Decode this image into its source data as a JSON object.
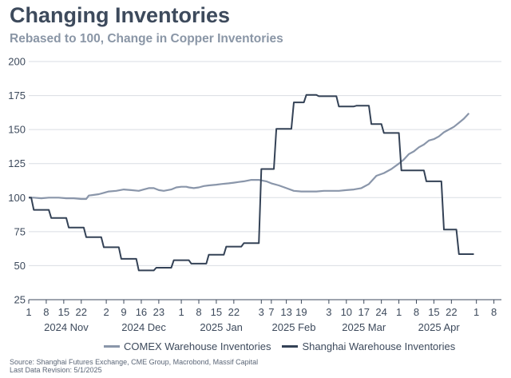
{
  "title": "Changing Inventories",
  "subtitle": "Rebased to 100, Change in Copper Inventories",
  "source": "Source: Shanghai Futures Exchange, CME Group, Macrobond, Massif Capital",
  "revision": "Last Data Revision: 5/1/2025",
  "colors": {
    "comex": "#8a96aa",
    "shanghai": "#344256",
    "grid": "#d9dde3",
    "text": "#3d4a5c"
  },
  "chart_data": {
    "type": "line",
    "title": "Changing Inventories",
    "subtitle": "Rebased to 100, Change in Copper Inventories",
    "ylim": [
      25,
      200
    ],
    "yticks": [
      25,
      50,
      75,
      100,
      125,
      150,
      175,
      200
    ],
    "xlim": [
      0,
      189
    ],
    "xticks": [
      {
        "d": 0,
        "label": "1"
      },
      {
        "d": 7,
        "label": "8"
      },
      {
        "d": 14,
        "label": "15"
      },
      {
        "d": 21,
        "label": "22"
      },
      {
        "d": 31,
        "label": "2"
      },
      {
        "d": 38,
        "label": "9"
      },
      {
        "d": 45,
        "label": "16"
      },
      {
        "d": 52,
        "label": "23"
      },
      {
        "d": 61,
        "label": "1"
      },
      {
        "d": 68,
        "label": "8"
      },
      {
        "d": 75,
        "label": "15"
      },
      {
        "d": 82,
        "label": "22"
      },
      {
        "d": 93,
        "label": "3"
      },
      {
        "d": 97,
        "label": "7"
      },
      {
        "d": 103,
        "label": "13"
      },
      {
        "d": 109,
        "label": "19"
      },
      {
        "d": 120,
        "label": "3"
      },
      {
        "d": 127,
        "label": "10"
      },
      {
        "d": 134,
        "label": "17"
      },
      {
        "d": 141,
        "label": "24"
      },
      {
        "d": 148,
        "label": "1"
      },
      {
        "d": 155,
        "label": "8"
      },
      {
        "d": 162,
        "label": "15"
      },
      {
        "d": 169,
        "label": "22"
      },
      {
        "d": 179,
        "label": "1"
      },
      {
        "d": 186,
        "label": "8"
      }
    ],
    "months": [
      {
        "d": 15,
        "label": "2024 Nov"
      },
      {
        "d": 46,
        "label": "2024 Dec"
      },
      {
        "d": 77,
        "label": "2025 Jan"
      },
      {
        "d": 106,
        "label": "2025 Feb"
      },
      {
        "d": 134,
        "label": "2025 Mar"
      },
      {
        "d": 164,
        "label": "2025 Apr"
      }
    ],
    "series": [
      {
        "name": "COMEX Warehouse Inventories",
        "color": "#8a96aa",
        "x": [
          0,
          2,
          5,
          8,
          10,
          12,
          15,
          18,
          21,
          23,
          24,
          26,
          28,
          30,
          32,
          35,
          38,
          41,
          44,
          46,
          48,
          50,
          52,
          54,
          57,
          59,
          61,
          63,
          64,
          66,
          68,
          70,
          72,
          75,
          77,
          80,
          82,
          84,
          86,
          89,
          92,
          95,
          97,
          100,
          103,
          106,
          109,
          112,
          115,
          118,
          121,
          124,
          127,
          130,
          133,
          136,
          139,
          142,
          145,
          148,
          150,
          152,
          154,
          156,
          158,
          160,
          162,
          164,
          166,
          168,
          170,
          172,
          174,
          176
        ],
        "values": [
          100,
          100,
          99.5,
          100,
          100,
          100,
          99.5,
          99.5,
          99,
          99,
          101.5,
          102,
          102.5,
          103.5,
          104.5,
          105,
          106,
          105.5,
          105,
          106,
          107,
          107,
          105.5,
          105,
          106,
          107.5,
          108,
          108,
          107.5,
          107,
          107.5,
          108.5,
          109,
          109.5,
          110,
          110.5,
          111,
          111.5,
          112,
          113,
          113,
          112,
          110.5,
          109,
          107,
          105,
          104.5,
          104.5,
          104.5,
          105,
          105,
          105,
          105.5,
          106,
          107,
          110,
          116,
          118,
          121,
          125,
          128,
          132,
          134,
          137,
          139,
          142,
          143,
          145,
          148,
          150,
          152,
          155,
          158,
          162
        ]
      },
      {
        "name": "Shanghai Warehouse Inventories",
        "color": "#344256",
        "x": [
          0,
          1,
          2,
          8,
          9,
          15,
          16,
          22,
          23,
          29,
          30,
          36,
          37,
          43,
          44,
          50,
          51,
          57,
          58,
          64,
          65,
          71,
          72,
          78,
          79,
          85,
          86,
          92,
          93,
          98,
          99,
          105,
          106,
          110,
          111,
          115,
          116,
          123,
          124,
          130,
          131,
          136,
          137,
          141,
          142,
          148,
          149,
          152,
          153,
          158,
          159,
          165,
          166,
          171,
          172,
          178
        ],
        "values": [
          100,
          100,
          91,
          91,
          85,
          85,
          78,
          78,
          71,
          71,
          63.5,
          63.5,
          55,
          55,
          46.5,
          46.5,
          48.5,
          48.5,
          54,
          54,
          51.5,
          51.5,
          58,
          58,
          64,
          64,
          66.5,
          66.5,
          121,
          121,
          150.5,
          150.5,
          170,
          170,
          175.5,
          175.5,
          174.5,
          174.5,
          167,
          167,
          167.5,
          167.5,
          154,
          154,
          147.5,
          147.5,
          120,
          120,
          120,
          120,
          112,
          112,
          76.5,
          76.5,
          58.5,
          58.5
        ]
      }
    ],
    "legend": "bottom-center"
  }
}
